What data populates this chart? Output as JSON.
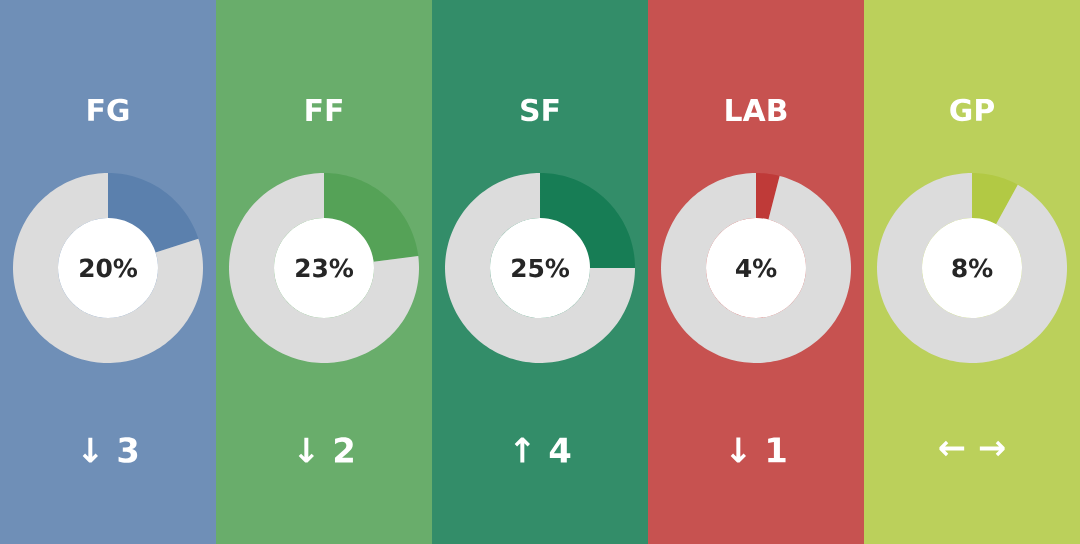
{
  "chart_data": [
    {
      "type": "donut",
      "title": "FG",
      "categories": [
        null,
        null
      ],
      "values": [
        20,
        80
      ],
      "colors": [
        "#5b80ad",
        "#dcdcdc"
      ],
      "annotations": [
        "20%",
        "↓ 3"
      ]
    },
    {
      "type": "donut",
      "title": "FF",
      "categories": [
        null,
        null
      ],
      "values": [
        23,
        77
      ],
      "colors": [
        "#55a257",
        "#dcdcdc"
      ],
      "annotations": [
        "23%",
        "↓ 2"
      ]
    },
    {
      "type": "donut",
      "title": "SF",
      "categories": [
        null,
        null
      ],
      "values": [
        25,
        75
      ],
      "colors": [
        "#177d55",
        "#dcdcdc"
      ],
      "annotations": [
        "25%",
        "↑ 4"
      ]
    },
    {
      "type": "donut",
      "title": "LAB",
      "categories": [
        null,
        null
      ],
      "values": [
        4,
        96
      ],
      "colors": [
        "#bf3a38",
        "#dcdcdc"
      ],
      "annotations": [
        "4%",
        "↓ 1"
      ]
    },
    {
      "type": "donut",
      "title": "GP",
      "categories": [
        null,
        null
      ],
      "values": [
        8,
        92
      ],
      "colors": [
        "#b2c944",
        "#dcdcdc"
      ],
      "annotations": [
        "8%",
        "← →"
      ]
    }
  ]
}
